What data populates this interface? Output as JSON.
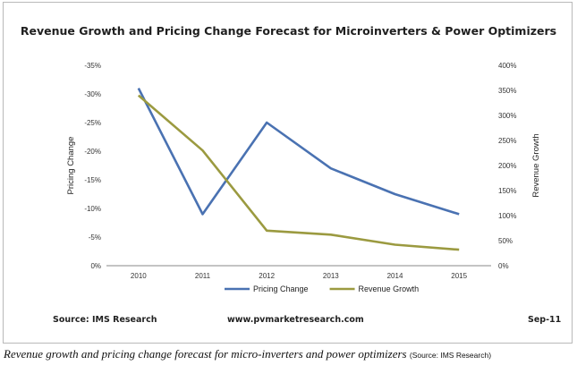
{
  "chart_data": {
    "type": "line",
    "title": "Revenue Growth and Pricing Change Forecast for Microinverters & Power Optimizers",
    "categories": [
      "2010",
      "2011",
      "2012",
      "2013",
      "2014",
      "2015"
    ],
    "y_left": {
      "label": "Pricing Change",
      "range": [
        0,
        -35
      ],
      "ticks": [
        "0%",
        "-5%",
        "-10%",
        "-15%",
        "-20%",
        "-25%",
        "-30%",
        "-35%"
      ]
    },
    "y_right": {
      "label": "Revenue Growth",
      "range": [
        0,
        400
      ],
      "ticks": [
        "0%",
        "50%",
        "100%",
        "150%",
        "200%",
        "250%",
        "300%",
        "350%",
        "400%"
      ]
    },
    "series": [
      {
        "name": "Pricing Change",
        "axis": "left",
        "color": "#4a72b2",
        "values": [
          -31,
          -9,
          -25,
          -17,
          -12.5,
          -9
        ]
      },
      {
        "name": "Revenue Growth",
        "axis": "right",
        "color": "#9b9a40",
        "values": [
          340,
          230,
          70,
          62,
          42,
          32
        ]
      }
    ],
    "legend": "bottom",
    "grid": false
  },
  "footer": {
    "source": "Source: IMS Research",
    "website": "www.pvmarketresearch.com",
    "date": "Sep-11"
  },
  "caption": {
    "text": "Revenue growth and pricing change forecast for micro-inverters and power optimizers",
    "source": "(Source: IMS Research)"
  }
}
